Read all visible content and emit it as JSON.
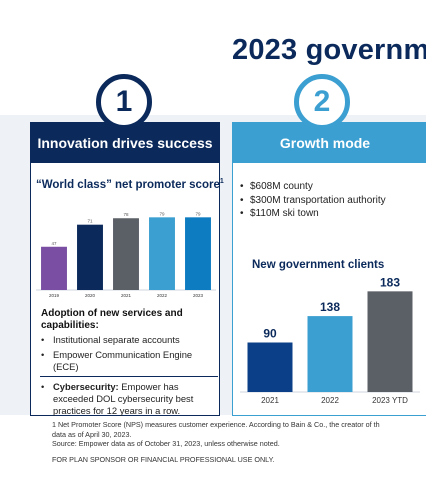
{
  "headline": "2023 governm",
  "panel1": {
    "number": "1",
    "title": "Innovation drives success",
    "nps_title": "“World class” net promoter score",
    "nps_sup": "1",
    "subheading": "Adoption of new services and capabilities:",
    "bullets": [
      {
        "text": "Institutional separate accounts",
        "bold": ""
      },
      {
        "text": "Empower Communication Engine (ECE)",
        "bold": ""
      },
      {
        "text": " Empower has exceeded DOL cybersecurity best practices for 12 years in a row.",
        "bold": "Cybersecurity:"
      }
    ]
  },
  "panel2": {
    "number": "2",
    "title": "Growth mode",
    "bullets": [
      "$608M county",
      "$300M transportation authority",
      "$110M ski town"
    ],
    "clients_title": "New government clients"
  },
  "footnotes": {
    "line1": "1 Net Promoter Score (NPS) measures customer experience. According to Bain & Co., the creator of th",
    "line2": "data as of April 30, 2023.",
    "line3": "Source: Empower data as of October 31, 2023, unless otherwise noted.",
    "line4": "FOR PLAN SPONSOR OR FINANCIAL PROFESSIONAL USE ONLY."
  },
  "chart_data": [
    {
      "type": "bar",
      "categories": [
        "2019",
        "2020",
        "2021",
        "2022",
        "2023"
      ],
      "values": [
        47,
        71,
        78,
        79,
        79
      ],
      "value_labels": [
        "47",
        "71",
        "78",
        "79",
        "79"
      ],
      "colors": [
        "#7a4fa3",
        "#0b2a5b",
        "#5b5f66",
        "#3b9fd1",
        "#0e7cc0"
      ],
      "title": "“World class” net promoter score",
      "ylim": [
        0,
        100
      ],
      "grid": false,
      "legend": "none"
    },
    {
      "type": "bar",
      "categories": [
        "2021",
        "2022",
        "2023 YTD"
      ],
      "values": [
        90,
        138,
        183
      ],
      "value_labels": [
        "90",
        "138",
        "183"
      ],
      "colors": [
        "#0b3f87",
        "#3b9fd1",
        "#5b5f66"
      ],
      "label_colors": [
        "#0b2a5b",
        "#0b2a5b",
        "#0b2a5b"
      ],
      "title": "New government clients",
      "ylim": [
        0,
        200
      ],
      "grid": false,
      "legend": "none"
    }
  ]
}
